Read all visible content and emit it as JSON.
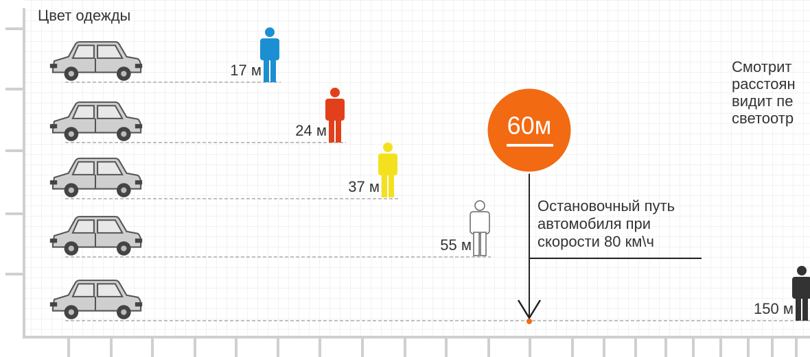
{
  "title": "Цвет одежды",
  "rows": [
    {
      "label": "17 м",
      "color": "#1b8fd2"
    },
    {
      "label": "24 м",
      "color": "#e2401b"
    },
    {
      "label": "37 м",
      "color": "#f3e11f"
    },
    {
      "label": "55 м",
      "color": "#ffffff"
    },
    {
      "label": "150 м",
      "color": "#333333"
    }
  ],
  "sign": {
    "label": "60м",
    "color": "#f26a12"
  },
  "note": [
    "Остановочный путь",
    "автомобиля при",
    "скорости 80 км\\ч"
  ],
  "side_text": [
    "Смотрит",
    "расстоян",
    "видит пе",
    "светоотр"
  ]
}
